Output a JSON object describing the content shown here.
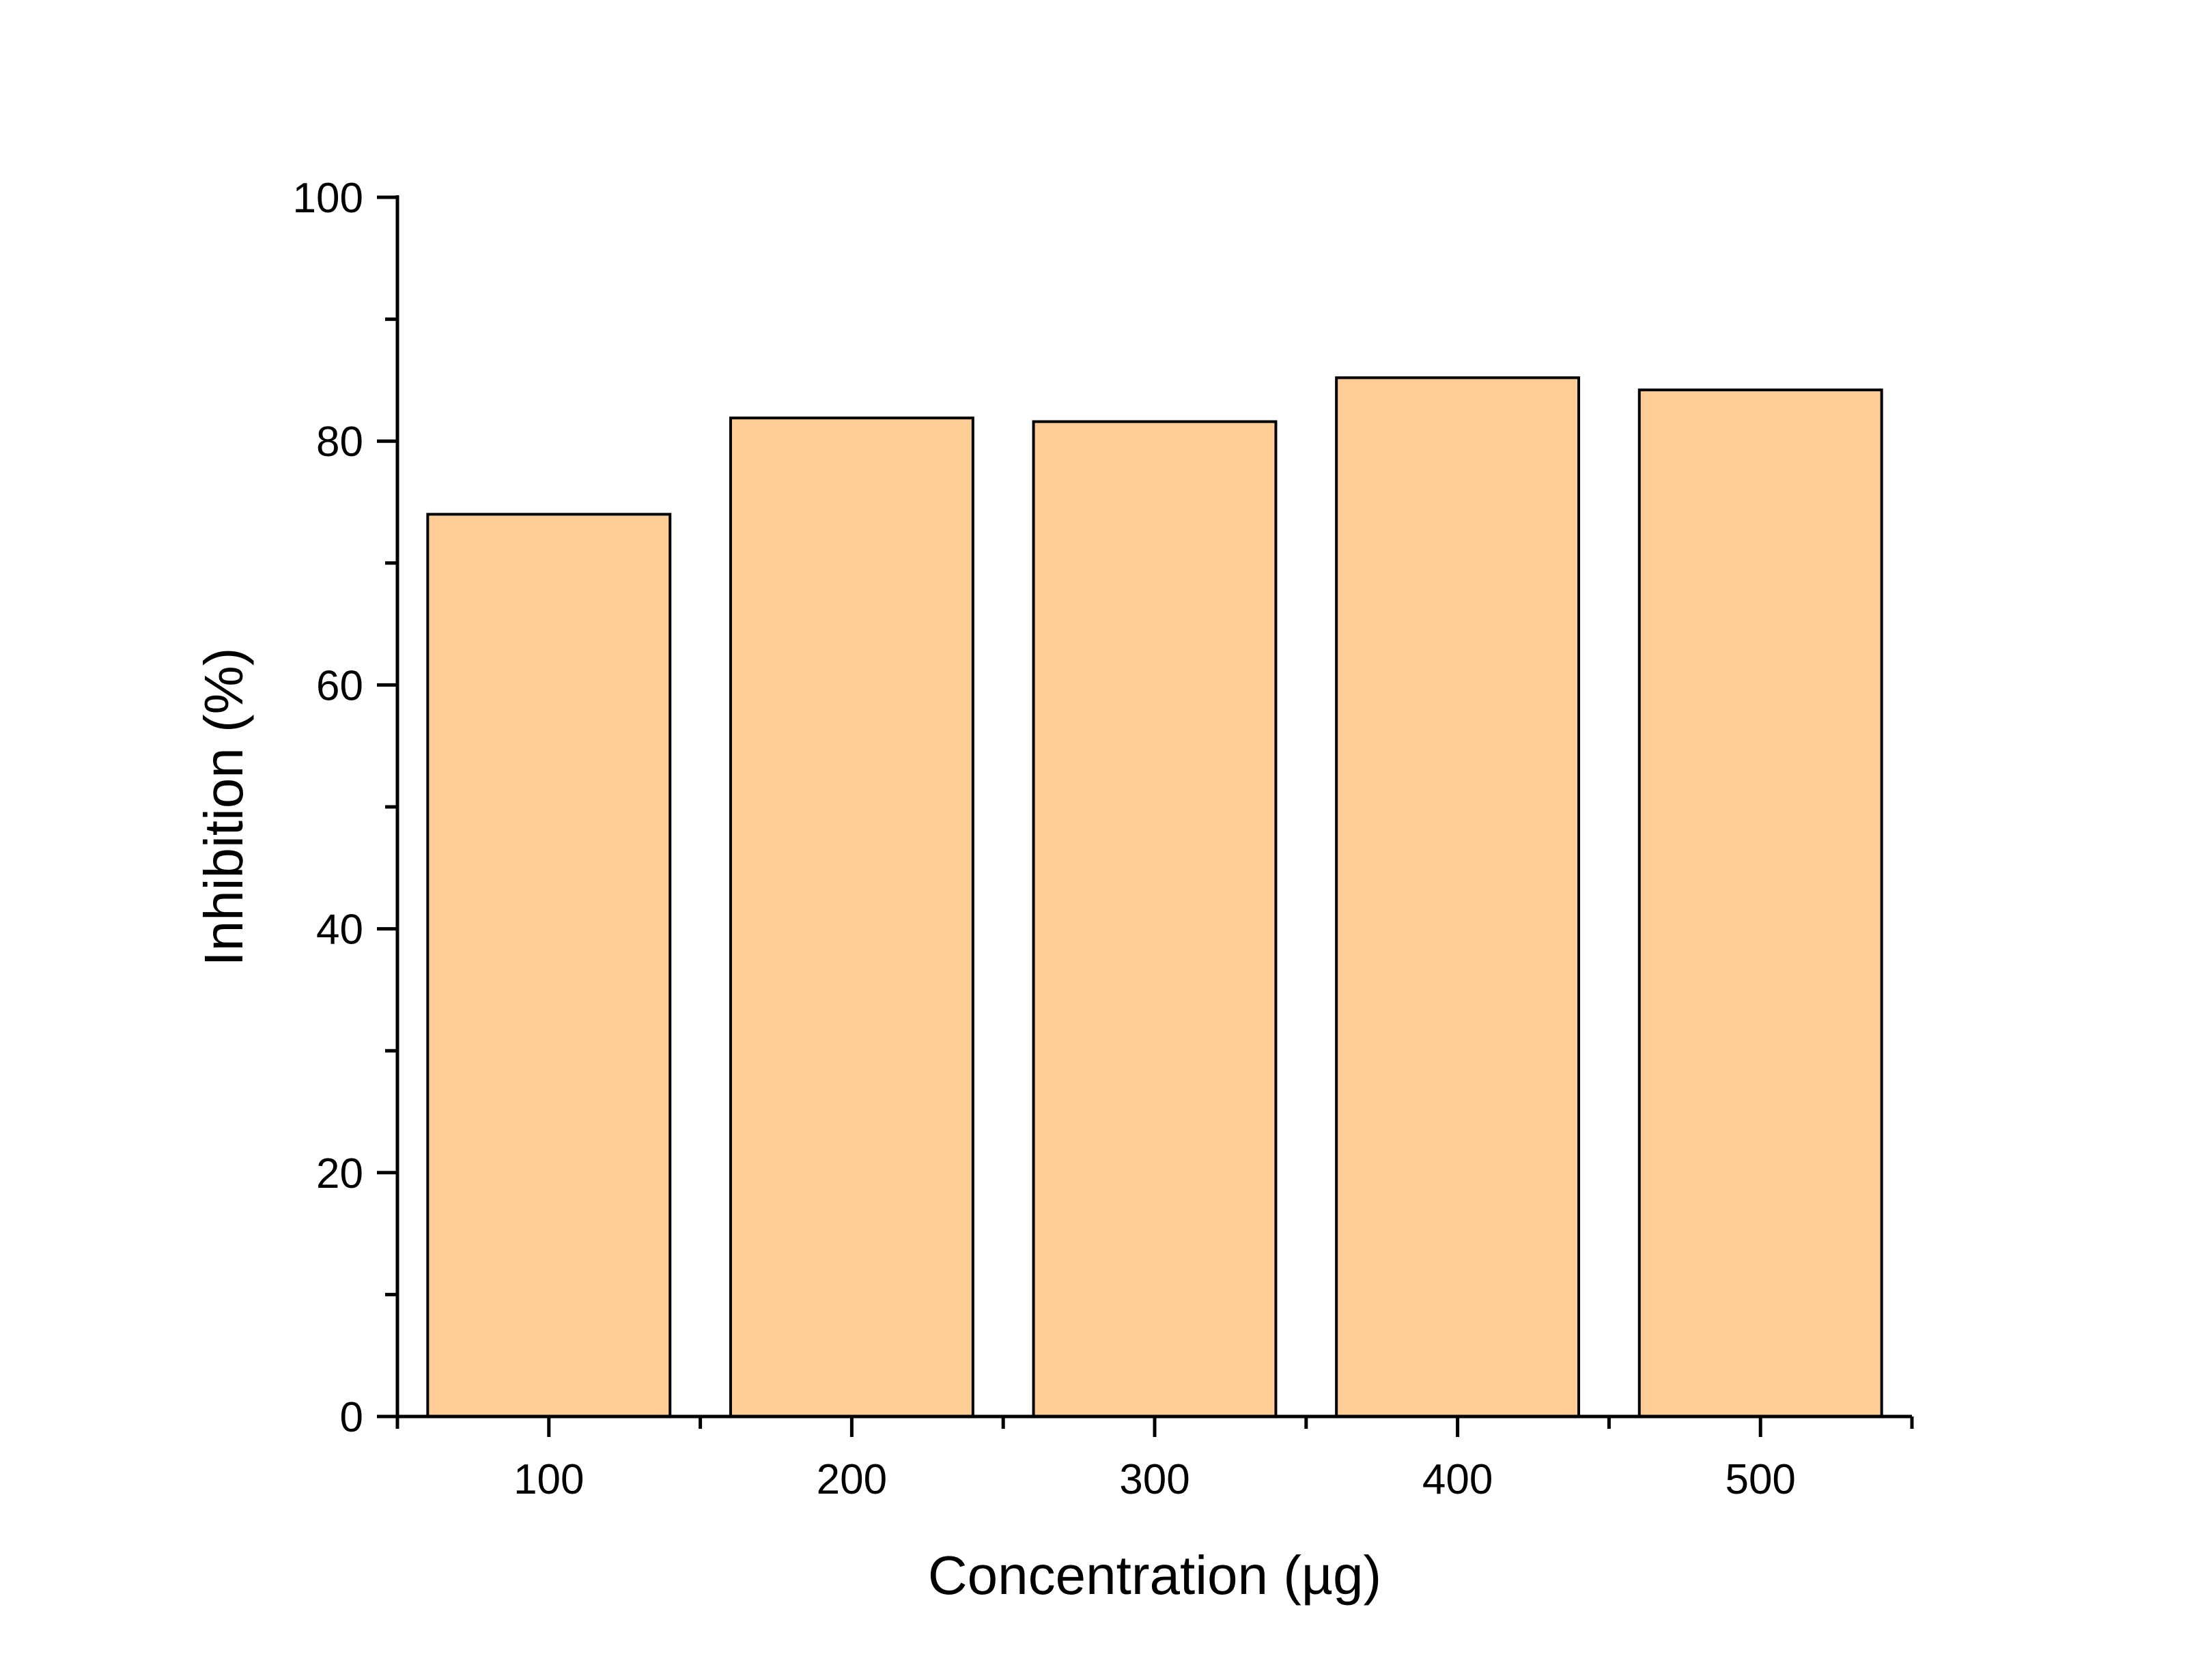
{
  "chart_data": {
    "type": "bar",
    "categories": [
      "100",
      "200",
      "300",
      "400",
      "500"
    ],
    "values": [
      74.0,
      81.9,
      81.6,
      85.2,
      84.2
    ],
    "xlabel": "Concentration (µg)",
    "ylabel": "Inhibition (%)",
    "ylim": [
      0,
      100
    ],
    "yticks": [
      "0",
      "20",
      "40",
      "60",
      "80",
      "100"
    ],
    "grid": false,
    "legend": "none",
    "bar_color": "#FECE96",
    "edge_color": "#000000"
  }
}
